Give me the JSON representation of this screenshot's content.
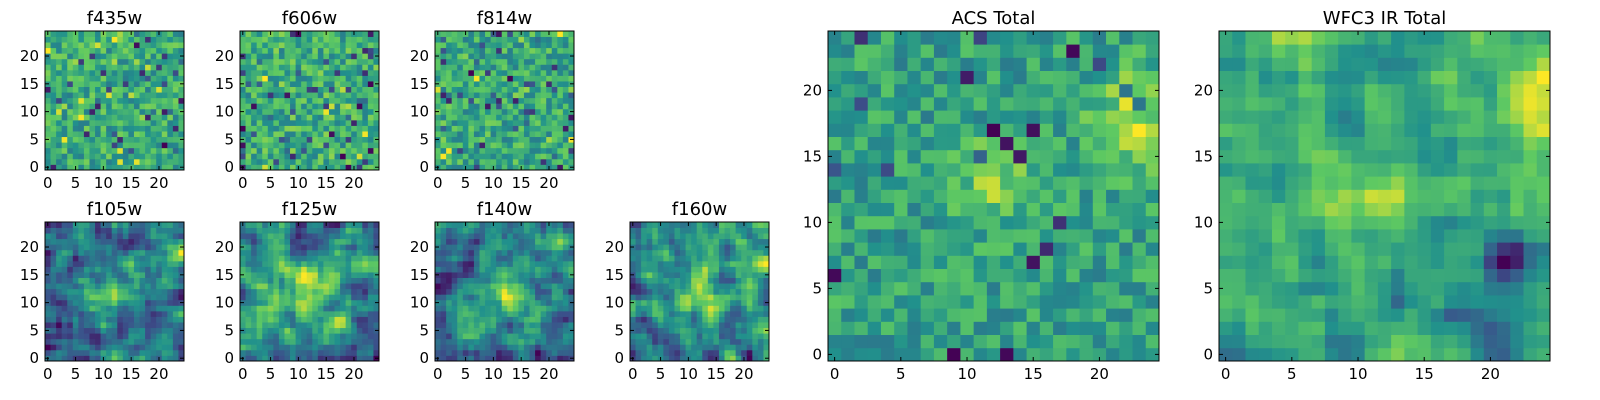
{
  "figure": {
    "description_type": "heatmap grid",
    "colormap": [
      "#440154",
      "#3b528b",
      "#21918c",
      "#5ec962",
      "#fde725"
    ]
  },
  "chart_data": [
    {
      "id": "f435w",
      "type": "heatmap",
      "title": "f435w",
      "grid_size": 25,
      "xlim": [
        0,
        24
      ],
      "ylim": [
        0,
        24
      ],
      "xticks": [
        0,
        5,
        10,
        15,
        20
      ],
      "yticks": [
        0,
        5,
        10,
        15,
        20
      ],
      "pattern": "noise",
      "seed": 11,
      "values": []
    },
    {
      "id": "f606w",
      "type": "heatmap",
      "title": "f606w",
      "grid_size": 25,
      "xlim": [
        0,
        24
      ],
      "ylim": [
        0,
        24
      ],
      "xticks": [
        0,
        5,
        10,
        15,
        20
      ],
      "yticks": [
        0,
        5,
        10,
        15,
        20
      ],
      "pattern": "noise",
      "seed": 23,
      "values": []
    },
    {
      "id": "f814w",
      "type": "heatmap",
      "title": "f814w",
      "grid_size": 25,
      "xlim": [
        0,
        24
      ],
      "ylim": [
        0,
        24
      ],
      "xticks": [
        0,
        5,
        10,
        15,
        20
      ],
      "yticks": [
        0,
        5,
        10,
        15,
        20
      ],
      "pattern": "noise",
      "seed": 37,
      "values": []
    },
    {
      "id": "f105w",
      "type": "heatmap",
      "title": "f105w",
      "grid_size": 25,
      "xlim": [
        0,
        24
      ],
      "ylim": [
        0,
        24
      ],
      "xticks": [
        0,
        5,
        10,
        15,
        20
      ],
      "yticks": [
        0,
        5,
        10,
        15,
        20
      ],
      "pattern": "smooth",
      "seed": 41,
      "values": []
    },
    {
      "id": "f125w",
      "type": "heatmap",
      "title": "f125w",
      "grid_size": 25,
      "xlim": [
        0,
        24
      ],
      "ylim": [
        0,
        24
      ],
      "xticks": [
        0,
        5,
        10,
        15,
        20
      ],
      "yticks": [
        0,
        5,
        10,
        15,
        20
      ],
      "pattern": "smooth",
      "seed": 53,
      "values": []
    },
    {
      "id": "f140w",
      "type": "heatmap",
      "title": "f140w",
      "grid_size": 25,
      "xlim": [
        0,
        24
      ],
      "ylim": [
        0,
        24
      ],
      "xticks": [
        0,
        5,
        10,
        15,
        20
      ],
      "yticks": [
        0,
        5,
        10,
        15,
        20
      ],
      "pattern": "smooth",
      "seed": 67,
      "values": []
    },
    {
      "id": "f160w",
      "type": "heatmap",
      "title": "f160w",
      "grid_size": 25,
      "xlim": [
        0,
        24
      ],
      "ylim": [
        0,
        24
      ],
      "xticks": [
        0,
        5,
        10,
        15,
        20
      ],
      "yticks": [
        0,
        5,
        10,
        15,
        20
      ],
      "pattern": "smooth",
      "seed": 79,
      "values": []
    },
    {
      "id": "acs-total",
      "type": "heatmap",
      "title": "ACS Total",
      "grid_size": 25,
      "xlim": [
        0,
        24
      ],
      "ylim": [
        0,
        24
      ],
      "xticks": [
        0,
        5,
        10,
        15,
        20
      ],
      "yticks": [
        0,
        5,
        10,
        15,
        20
      ],
      "pattern": "acs",
      "seed": 97,
      "values": []
    },
    {
      "id": "wfc3-ir-total",
      "type": "heatmap",
      "title": "WFC3 IR Total",
      "grid_size": 25,
      "xlim": [
        0,
        24
      ],
      "ylim": [
        0,
        24
      ],
      "xticks": [
        0,
        5,
        10,
        15,
        20
      ],
      "yticks": [
        0,
        5,
        10,
        15,
        20
      ],
      "pattern": "wfc3",
      "seed": 131,
      "values": []
    }
  ]
}
